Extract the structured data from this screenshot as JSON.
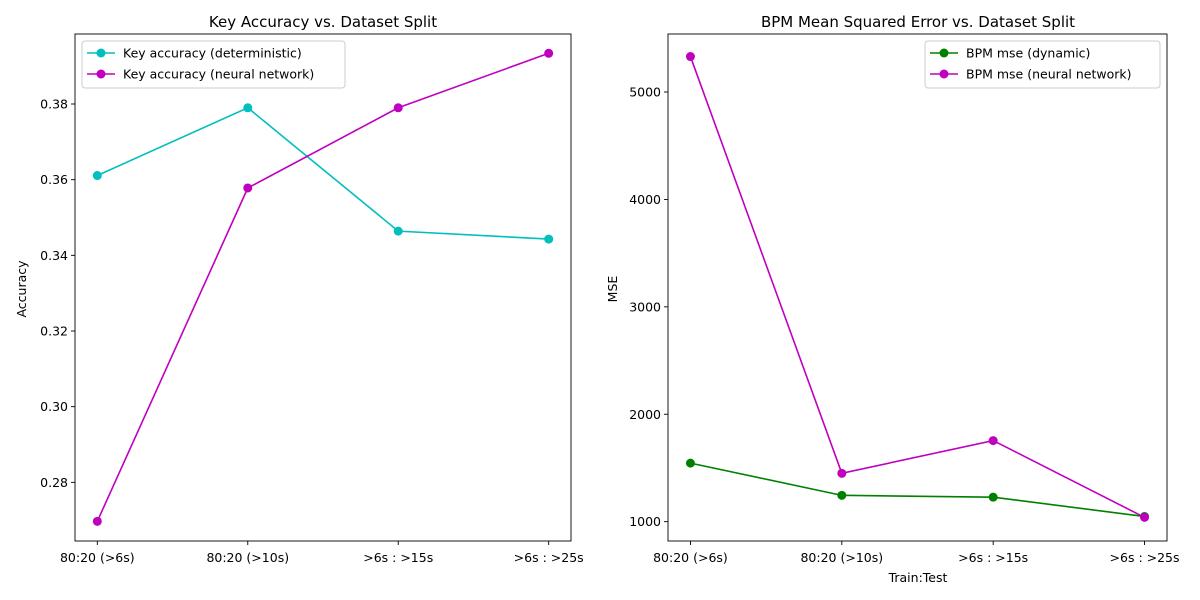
{
  "chart_data": [
    {
      "type": "line",
      "title": "Key Accuracy vs. Dataset Split",
      "xlabel": "",
      "ylabel": "Accuracy",
      "categories": [
        "80:20 (>6s)",
        "80:20 (>10s)",
        ">6s : >15s",
        ">6s : >25s"
      ],
      "yticks": [
        0.28,
        0.3,
        0.32,
        0.34,
        0.36,
        0.38
      ],
      "ytick_labels": [
        "0.28",
        "0.30",
        "0.32",
        "0.34",
        "0.36",
        "0.38"
      ],
      "ylim": [
        0.2645,
        0.3985
      ],
      "legend_position": "top-left",
      "grid": false,
      "series": [
        {
          "name": "Key accuracy (deterministic)",
          "color": "#00bfbf",
          "marker": "circle",
          "values": [
            0.3611,
            0.379,
            0.3464,
            0.3443
          ]
        },
        {
          "name": "Key accuracy (neural network)",
          "color": "#bf00bf",
          "marker": "circle",
          "values": [
            0.2697,
            0.3578,
            0.379,
            0.3934
          ]
        }
      ]
    },
    {
      "type": "line",
      "title": "BPM Mean Squared Error vs. Dataset Split",
      "xlabel": "Train:Test",
      "ylabel": "MSE",
      "categories": [
        "80:20 (>6s)",
        "80:20 (>10s)",
        ">6s : >15s",
        ">6s : >25s"
      ],
      "yticks": [
        1000,
        2000,
        3000,
        4000,
        5000
      ],
      "ytick_labels": [
        "1000",
        "2000",
        "3000",
        "4000",
        "5000"
      ],
      "ylim": [
        820,
        5540
      ],
      "legend_position": "top-right",
      "grid": false,
      "series": [
        {
          "name": "BPM mse (dynamic)",
          "color": "#008000",
          "marker": "circle",
          "values": [
            1545,
            1245,
            1228,
            1048
          ]
        },
        {
          "name": "BPM mse (neural network)",
          "color": "#bf00bf",
          "marker": "circle",
          "values": [
            5330,
            1450,
            1755,
            1040
          ]
        }
      ]
    }
  ]
}
